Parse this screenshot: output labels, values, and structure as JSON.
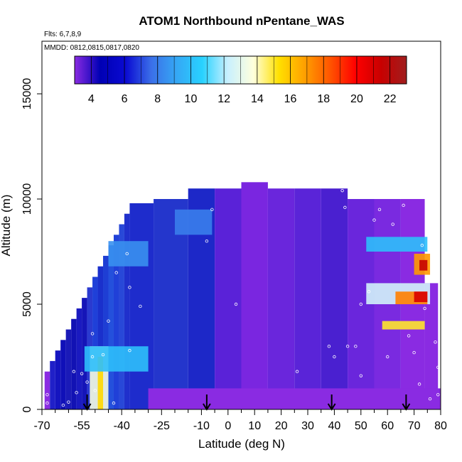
{
  "chart_data": {
    "type": "heatmap",
    "title": "ATOM1 Northbound nPentane_WAS",
    "flights_label": "Flts: 6,7,8,9",
    "dates_label": "MMDD: 0812,0815,0817,0820",
    "xlabel": "Latitude (deg N)",
    "ylabel": "Altitude (m)",
    "xlim": [
      -70,
      80
    ],
    "ylim": [
      0,
      17500
    ],
    "x_ticks": [
      -70,
      -55,
      -40,
      -25,
      -10,
      0,
      10,
      20,
      30,
      40,
      50,
      60,
      70,
      80
    ],
    "x_minor_ticks": [
      -65,
      -60,
      -50,
      -45,
      -35,
      -30,
      -20,
      -15,
      -5,
      5,
      15,
      25,
      35,
      45,
      55,
      65,
      75
    ],
    "y_ticks": [
      0,
      5000,
      10000,
      15000
    ],
    "colorbar": {
      "range": [
        3,
        23
      ],
      "ticks": [
        4,
        6,
        8,
        10,
        12,
        14,
        16,
        18,
        20,
        22
      ],
      "colors": [
        "#8a2be2",
        "#0000b4",
        "#0a0ad2",
        "#3b6fe8",
        "#35a8f5",
        "#28d2ff",
        "#c8f0ff",
        "#ffffdc",
        "#ffe000",
        "#ffa000",
        "#ff5500",
        "#ff0000",
        "#c80000",
        "#a01e1e"
      ]
    },
    "arrows_lat": [
      -53,
      -8,
      39,
      67
    ],
    "columns": [
      {
        "lat": -68,
        "top": 1800,
        "base": "#8a2be2"
      },
      {
        "lat": -66,
        "top": 2300,
        "base": "#2020c8"
      },
      {
        "lat": -64,
        "top": 2800,
        "base": "#1515c0"
      },
      {
        "lat": -62,
        "top": 3300,
        "base": "#1010b8"
      },
      {
        "lat": -60,
        "top": 3800,
        "base": "#1a1ab8"
      },
      {
        "lat": -58,
        "top": 4300,
        "base": "#1212b4"
      },
      {
        "lat": -56,
        "top": 4800,
        "base": "#1a1ac0"
      },
      {
        "lat": -54,
        "top": 5300,
        "base": "#1515b8"
      },
      {
        "lat": -52,
        "top": 5800,
        "base": "#2a3ad0"
      },
      {
        "lat": -50,
        "top": 6300,
        "base": "#1f40d8"
      },
      {
        "lat": -48,
        "top": 6800,
        "base": "#1a30cc"
      },
      {
        "lat": -46,
        "top": 7300,
        "base": "#1e3ed4"
      },
      {
        "lat": -44,
        "top": 7800,
        "base": "#2450dc"
      },
      {
        "lat": -42,
        "top": 8300,
        "base": "#2040d8"
      },
      {
        "lat": -40,
        "top": 8800,
        "base": "#2848d8"
      },
      {
        "lat": -38,
        "top": 9300,
        "base": "#2030cc"
      },
      {
        "lat": -36,
        "top": 9800,
        "base": "#1e2ccc"
      },
      {
        "lat": -20,
        "top": 10000,
        "base": "#2436cc"
      },
      {
        "lat": -10,
        "top": 10500,
        "base": "#1d28c8"
      },
      {
        "lat": 0,
        "top": 10500,
        "base": "#5a22d8"
      },
      {
        "lat": 10,
        "top": 10800,
        "base": "#7a26e0"
      },
      {
        "lat": 20,
        "top": 10500,
        "base": "#6a26dc"
      },
      {
        "lat": 30,
        "top": 10500,
        "base": "#5a24d8"
      },
      {
        "lat": 40,
        "top": 10500,
        "base": "#4a20d0"
      },
      {
        "lat": 50,
        "top": 10000,
        "base": "#6a26dc"
      },
      {
        "lat": 60,
        "top": 10000,
        "base": "#7a2ae0"
      },
      {
        "lat": 70,
        "top": 10000,
        "base": "#8a2be2"
      },
      {
        "lat": 78,
        "top": 6000,
        "base": "#8a2be2"
      }
    ],
    "hotspots": [
      {
        "lat_from": -52,
        "lat_to": -45,
        "alt_from": 0,
        "alt_to": 3000,
        "value": 13.5
      },
      {
        "lat_from": -49,
        "lat_to": -47,
        "alt_from": 0,
        "alt_to": 2500,
        "value": 15.5
      },
      {
        "lat_from": -54,
        "lat_to": -30,
        "alt_from": 1800,
        "alt_to": 3000,
        "value": 10.0
      },
      {
        "lat_from": 52,
        "lat_to": 76,
        "alt_from": 5000,
        "alt_to": 6000,
        "value": 12.5
      },
      {
        "lat_from": 63,
        "lat_to": 75,
        "alt_from": 5000,
        "alt_to": 5600,
        "value": 17.5
      },
      {
        "lat_from": 70,
        "lat_to": 75,
        "alt_from": 5100,
        "alt_to": 5600,
        "value": 21.0
      },
      {
        "lat_from": 58,
        "lat_to": 74,
        "alt_from": 3800,
        "alt_to": 4200,
        "value": 15.0
      },
      {
        "lat_from": 70,
        "lat_to": 76,
        "alt_from": 6400,
        "alt_to": 7400,
        "value": 17.0
      },
      {
        "lat_from": 72,
        "lat_to": 75,
        "alt_from": 6600,
        "alt_to": 7100,
        "value": 21.5
      },
      {
        "lat_from": 52,
        "lat_to": 75,
        "alt_from": 7500,
        "alt_to": 8200,
        "value": 10.0
      },
      {
        "lat_from": -45,
        "lat_to": -30,
        "alt_from": 6800,
        "alt_to": 8000,
        "value": 8.5
      },
      {
        "lat_from": -20,
        "lat_to": -6,
        "alt_from": 8300,
        "alt_to": 9500,
        "value": 8.0
      }
    ],
    "samples": [
      {
        "lat": -68,
        "alt": 700
      },
      {
        "lat": -68,
        "alt": 300
      },
      {
        "lat": -62,
        "alt": 200
      },
      {
        "lat": -60,
        "alt": 350
      },
      {
        "lat": -58,
        "alt": 1800
      },
      {
        "lat": -57,
        "alt": 800
      },
      {
        "lat": -55,
        "alt": 1700
      },
      {
        "lat": -53,
        "alt": 1300
      },
      {
        "lat": -51,
        "alt": 2500
      },
      {
        "lat": -51,
        "alt": 3600
      },
      {
        "lat": -50,
        "alt": 900
      },
      {
        "lat": -47,
        "alt": 2600
      },
      {
        "lat": -45,
        "alt": 4200
      },
      {
        "lat": -43,
        "alt": 300
      },
      {
        "lat": -42,
        "alt": 6500
      },
      {
        "lat": -40,
        "alt": 9700
      },
      {
        "lat": -38,
        "alt": 7400
      },
      {
        "lat": -37,
        "alt": 5800
      },
      {
        "lat": -37,
        "alt": 2800
      },
      {
        "lat": -33,
        "alt": 4900
      },
      {
        "lat": -8,
        "alt": 8000
      },
      {
        "lat": -6,
        "alt": 9500
      },
      {
        "lat": 3,
        "alt": 5000
      },
      {
        "lat": 26,
        "alt": 1800
      },
      {
        "lat": 38,
        "alt": 3000
      },
      {
        "lat": 40,
        "alt": 2500
      },
      {
        "lat": 43,
        "alt": 10400
      },
      {
        "lat": 44,
        "alt": 9600
      },
      {
        "lat": 45,
        "alt": 3000
      },
      {
        "lat": 48,
        "alt": 3000
      },
      {
        "lat": 50,
        "alt": 1600
      },
      {
        "lat": 50,
        "alt": 5000
      },
      {
        "lat": 53,
        "alt": 5600
      },
      {
        "lat": 55,
        "alt": 9000
      },
      {
        "lat": 57,
        "alt": 9500
      },
      {
        "lat": 60,
        "alt": 2500
      },
      {
        "lat": 62,
        "alt": 8800
      },
      {
        "lat": 66,
        "alt": 9700
      },
      {
        "lat": 68,
        "alt": 3500
      },
      {
        "lat": 70,
        "alt": 2700
      },
      {
        "lat": 72,
        "alt": 1200
      },
      {
        "lat": 73,
        "alt": 7800
      },
      {
        "lat": 74,
        "alt": 4800
      },
      {
        "lat": 75,
        "alt": 9500
      },
      {
        "lat": 76,
        "alt": 500
      },
      {
        "lat": 78,
        "alt": 3200
      },
      {
        "lat": 79,
        "alt": 2000
      },
      {
        "lat": 79,
        "alt": 700
      }
    ]
  }
}
